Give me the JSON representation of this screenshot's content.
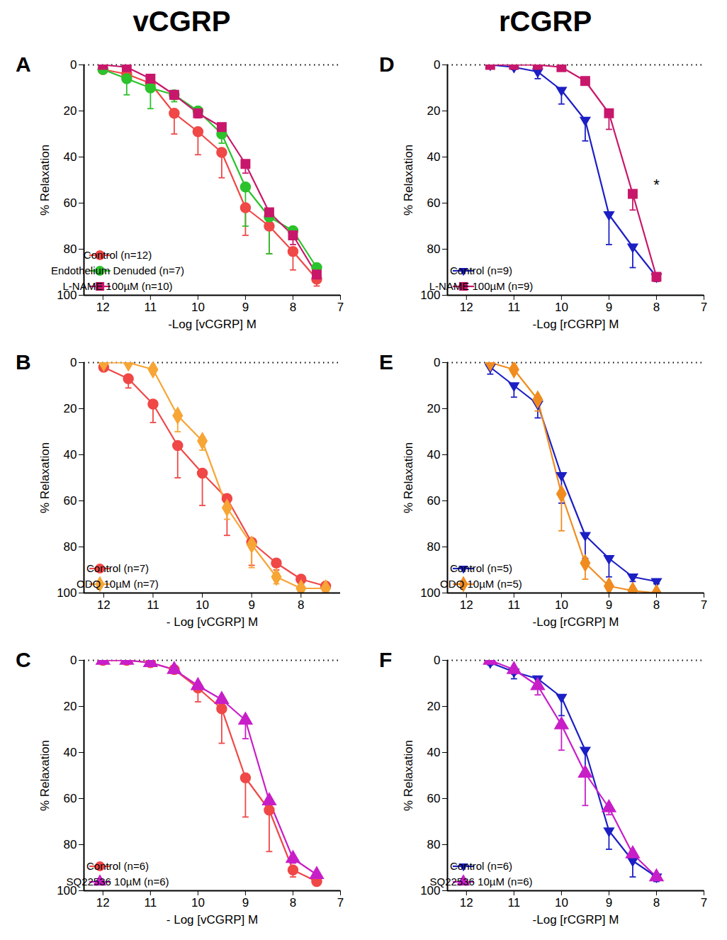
{
  "headers": [
    "vCGRP",
    "rCGRP"
  ],
  "chart_data": [
    {
      "type": "line",
      "panel": "A",
      "x_label": "-Log [vCGRP] M",
      "y_label": "% Relaxation",
      "xlim": [
        12.4,
        7
      ],
      "xticks": [
        12,
        11,
        10,
        9,
        8,
        7
      ],
      "ylim": [
        0,
        100
      ],
      "yticks": [
        0,
        20,
        40,
        60,
        80,
        100
      ],
      "baseline": 0,
      "legend": "lower left",
      "series": [
        {
          "name": "Control (n=12)",
          "color": "#f04747",
          "marker": "circle",
          "x": [
            12,
            11.5,
            11,
            10.5,
            10,
            9.5,
            9,
            8.5,
            8,
            7.5
          ],
          "values": [
            2,
            4,
            8,
            21,
            29,
            38,
            62,
            70,
            81,
            93
          ],
          "errors": [
            1,
            2,
            3,
            9,
            10,
            11,
            12,
            12,
            8,
            3
          ]
        },
        {
          "name": "Endothelium Denuded (n=7)",
          "color": "#2bc22b",
          "marker": "circle",
          "x": [
            12,
            11.5,
            11,
            10.5,
            10,
            9.5,
            9,
            8.5,
            8,
            7.5
          ],
          "values": [
            2,
            6,
            10,
            13,
            20,
            30,
            53,
            66,
            72,
            88
          ],
          "errors": [
            1,
            7,
            9,
            3,
            2,
            4,
            17,
            16,
            2,
            2
          ]
        },
        {
          "name": "L-NAME 100µM (n=10)",
          "color": "#c8176b",
          "marker": "square",
          "x": [
            12,
            11.5,
            11,
            10.5,
            10,
            9.5,
            9,
            8.5,
            8,
            7.5
          ],
          "values": [
            0,
            1,
            6,
            13,
            21,
            27,
            43,
            64,
            74,
            91
          ],
          "errors": [
            1,
            1,
            2,
            2,
            2,
            3,
            4,
            5,
            4,
            3
          ]
        }
      ]
    },
    {
      "type": "line",
      "panel": "B",
      "x_label": "- Log [vCGRP] M",
      "y_label": "% Relaxation",
      "xlim": [
        12.4,
        7.2
      ],
      "xticks": [
        12,
        11,
        10,
        9,
        8
      ],
      "ylim": [
        0,
        100
      ],
      "yticks": [
        0,
        20,
        40,
        60,
        80,
        100
      ],
      "baseline": 0,
      "legend": "lower left",
      "series": [
        {
          "name": "Control (n=7)",
          "color": "#f04747",
          "marker": "circle",
          "x": [
            12,
            11.5,
            11,
            10.5,
            10,
            9.5,
            9,
            8.5,
            8,
            7.5
          ],
          "values": [
            2,
            7,
            18,
            36,
            48,
            59,
            78,
            87,
            94,
            97
          ],
          "errors": [
            1,
            4,
            8,
            14,
            14,
            16,
            10,
            3,
            2,
            1
          ]
        },
        {
          "name": "ODQ 10µM (n=7)",
          "color": "#f7a535",
          "marker": "diamond",
          "x": [
            12,
            11.5,
            11,
            10.5,
            10,
            9.5,
            9,
            8.5,
            8,
            7.5
          ],
          "values": [
            0,
            0,
            3,
            23,
            34,
            63,
            79,
            93,
            98,
            98
          ],
          "errors": [
            0,
            0,
            1,
            7,
            4,
            5,
            10,
            3,
            1,
            1
          ]
        }
      ]
    },
    {
      "type": "line",
      "panel": "C",
      "x_label": "- Log [vCGRP] M",
      "y_label": "% Relaxation",
      "xlim": [
        12.4,
        7
      ],
      "xticks": [
        12,
        11,
        10,
        9,
        8,
        7
      ],
      "ylim": [
        0,
        100
      ],
      "yticks": [
        0,
        20,
        40,
        60,
        80,
        100
      ],
      "baseline": 0,
      "legend": "lower left",
      "series": [
        {
          "name": "Control (n=6)",
          "color": "#f04747",
          "marker": "circle",
          "x": [
            12,
            11.5,
            11,
            10.5,
            10,
            9.5,
            9,
            8.5,
            8,
            7.5
          ],
          "values": [
            0,
            0,
            1,
            4,
            12,
            21,
            51,
            65,
            91,
            96
          ],
          "errors": [
            0,
            0,
            1,
            1,
            6,
            15,
            17,
            18,
            3,
            1
          ]
        },
        {
          "name": "SQ22536 10µM (n=6)",
          "color": "#c81ec8",
          "marker": "triangle",
          "x": [
            12,
            11.5,
            11,
            10.5,
            10,
            9.5,
            9,
            8.5,
            8,
            7.5
          ],
          "values": [
            0,
            0,
            1,
            4,
            11,
            17,
            26,
            61,
            86,
            93
          ],
          "errors": [
            0,
            0,
            0,
            1,
            2,
            2,
            8,
            2,
            2,
            1
          ]
        }
      ]
    },
    {
      "type": "line",
      "panel": "D",
      "x_label": "-Log [rCGRP] M",
      "y_label": "% Relaxation",
      "xlim": [
        12.4,
        7
      ],
      "xticks": [
        12,
        11,
        10,
        9,
        8,
        7
      ],
      "ylim": [
        0,
        100
      ],
      "yticks": [
        0,
        20,
        40,
        60,
        80,
        100
      ],
      "baseline": 0,
      "legend": "lower left",
      "annotations": [
        {
          "text": "*",
          "x": 8,
          "y": 52
        }
      ],
      "series": [
        {
          "name": "Control (n=9)",
          "color": "#1c1fc4",
          "marker": "triangle-down",
          "x": [
            11.5,
            11,
            10.5,
            10,
            9.5,
            9,
            8.5,
            8
          ],
          "values": [
            0,
            1,
            3,
            11,
            24,
            65,
            79,
            92
          ],
          "errors": [
            1,
            1,
            3,
            6,
            9,
            13,
            9,
            2
          ]
        },
        {
          "name": "L-NAME 100µM (n=9)",
          "color": "#c8176b",
          "marker": "square",
          "x": [
            11.5,
            11,
            10.5,
            10,
            9.5,
            9,
            8.5,
            8
          ],
          "values": [
            0,
            0,
            0,
            1,
            7,
            21,
            56,
            92
          ],
          "errors": [
            0,
            0,
            0,
            1,
            1,
            7,
            7,
            2
          ]
        }
      ]
    },
    {
      "type": "line",
      "panel": "E",
      "x_label": "-Log [rCGRP] M",
      "y_label": "% Relaxation",
      "xlim": [
        12.4,
        7
      ],
      "xticks": [
        12,
        11,
        10,
        9,
        8,
        7
      ],
      "ylim": [
        0,
        100
      ],
      "yticks": [
        0,
        20,
        40,
        60,
        80,
        100
      ],
      "baseline": 0,
      "legend": "lower left",
      "series": [
        {
          "name": "Control (n=5)",
          "color": "#1c1fc4",
          "marker": "triangle-down",
          "x": [
            11.5,
            11,
            10.5,
            10,
            9.5,
            9,
            8.5,
            8
          ],
          "values": [
            2,
            10,
            18,
            49,
            75,
            85,
            93,
            95
          ],
          "errors": [
            3,
            5,
            6,
            12,
            10,
            8,
            2,
            1
          ]
        },
        {
          "name": "ODQ 10µM (n=5)",
          "color": "#f08c1f",
          "marker": "diamond",
          "x": [
            11.5,
            11,
            10.5,
            10,
            9.5,
            9,
            8.5,
            8
          ],
          "values": [
            0,
            3,
            16,
            57,
            87,
            97,
            99,
            100
          ],
          "errors": [
            0,
            1,
            5,
            16,
            7,
            1,
            1,
            0
          ]
        }
      ]
    },
    {
      "type": "line",
      "panel": "F",
      "x_label": "-Log [rCGRP] M",
      "y_label": "% Relaxation",
      "xlim": [
        12.4,
        7
      ],
      "xticks": [
        12,
        11,
        10,
        9,
        8,
        7
      ],
      "ylim": [
        0,
        100
      ],
      "yticks": [
        0,
        20,
        40,
        60,
        80,
        100
      ],
      "baseline": 0,
      "legend": "lower left",
      "series": [
        {
          "name": "Control (n=6)",
          "color": "#1c1fc4",
          "marker": "triangle-down",
          "x": [
            11.5,
            11,
            10.5,
            10,
            9.5,
            9,
            8.5,
            8
          ],
          "values": [
            1,
            5,
            8,
            16,
            39,
            74,
            87,
            94
          ],
          "errors": [
            1,
            3,
            3,
            8,
            9,
            8,
            7,
            2
          ]
        },
        {
          "name": "SQ22536 10µM (n=6)",
          "color": "#c81ec8",
          "marker": "triangle",
          "x": [
            11.5,
            11,
            10.5,
            10,
            9.5,
            9,
            8.5,
            8
          ],
          "values": [
            0,
            4,
            11,
            28,
            49,
            64,
            84,
            94
          ],
          "errors": [
            0,
            2,
            4,
            11,
            14,
            3,
            2,
            1
          ]
        }
      ]
    }
  ]
}
